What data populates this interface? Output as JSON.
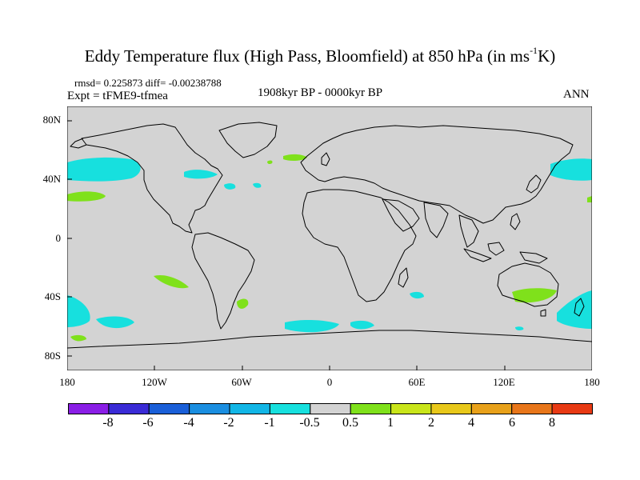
{
  "title": {
    "main": "Eddy Temperature flux (High Pass, Bloomfield) at 850 hPa (in ms",
    "sup": "-1",
    "end": "K)"
  },
  "stats": "rmsd= 0.225873 diff= -0.00238788",
  "expt": "Expt = tFME9-tfmea",
  "period": "1908kyr BP - 0000kyr BP",
  "season": "ANN",
  "lat_labels": [
    "80N",
    "40N",
    "0",
    "40S",
    "80S"
  ],
  "lon_labels": [
    "180",
    "120W",
    "60W",
    "0",
    "60E",
    "120E",
    "180"
  ],
  "colorbar": {
    "labels": [
      "-8",
      "-6",
      "-4",
      "-2",
      "-1",
      "-0.5",
      "0.5",
      "1",
      "2",
      "4",
      "6",
      "8"
    ],
    "colors": [
      "#8a1ee6",
      "#3a2bd6",
      "#1a5fd8",
      "#1a8ee0",
      "#12b6e6",
      "#17e0de",
      "#d3d3d3",
      "#7fe11b",
      "#c9e51a",
      "#e8c81a",
      "#e8a11a",
      "#e8761a",
      "#e83a14"
    ]
  },
  "colors": {
    "land_ocean": "#d3d3d3",
    "cyan": "#17e0de",
    "green": "#7fe11b"
  }
}
